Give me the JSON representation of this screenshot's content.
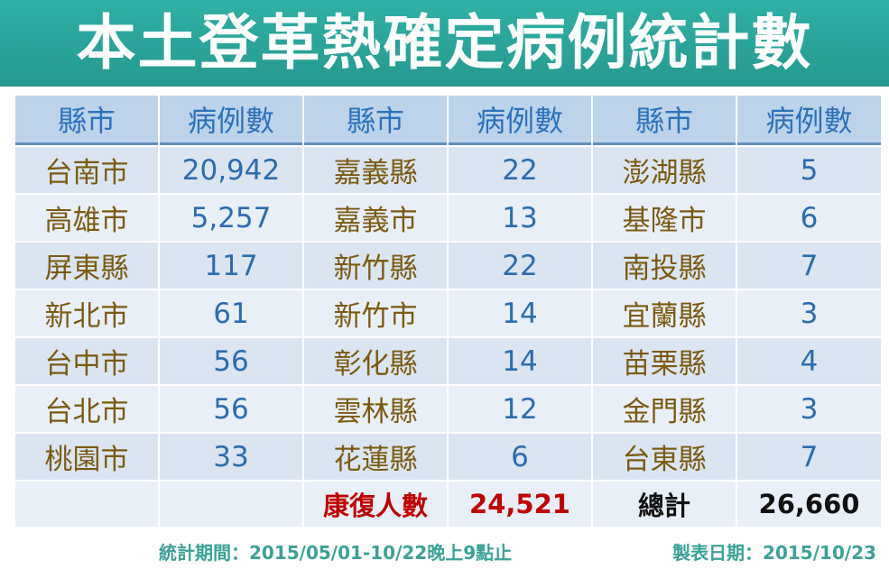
{
  "title": "本土登革熱確定病例統計數",
  "table": {
    "headers": [
      "縣市",
      "病例數",
      "縣市",
      "病例數",
      "縣市",
      "病例數"
    ],
    "rows": [
      [
        "台南市",
        "20,942",
        "嘉義縣",
        "22",
        "澎湖縣",
        "5"
      ],
      [
        "高雄市",
        "5,257",
        "嘉義市",
        "13",
        "基隆市",
        "6"
      ],
      [
        "屏東縣",
        "117",
        "新竹縣",
        "22",
        "南投縣",
        "7"
      ],
      [
        "新北市",
        "61",
        "新竹市",
        "14",
        "宜蘭縣",
        "3"
      ],
      [
        "台中市",
        "56",
        "彰化縣",
        "14",
        "苗栗縣",
        "4"
      ],
      [
        "台北市",
        "56",
        "雲林縣",
        "12",
        "金門縣",
        "3"
      ],
      [
        "桃園市",
        "33",
        "花蓮縣",
        "6",
        "台東縣",
        "7"
      ]
    ],
    "summary": {
      "recovered_label": "康復人數",
      "recovered_value": "24,521",
      "total_label": "總計",
      "total_value": "26,660"
    }
  },
  "footer": {
    "period": "統計期間：2015/05/01-10/22晚上9點止",
    "made_date": "製表日期：2015/10/23"
  },
  "colors": {
    "title_bar": "#2aa198",
    "header_bg": "#bcd3ea",
    "county_text": "#7b5a10",
    "count_text": "#2b6cb0",
    "recovered_text": "#c00000",
    "footer_text": "#3aa197"
  }
}
